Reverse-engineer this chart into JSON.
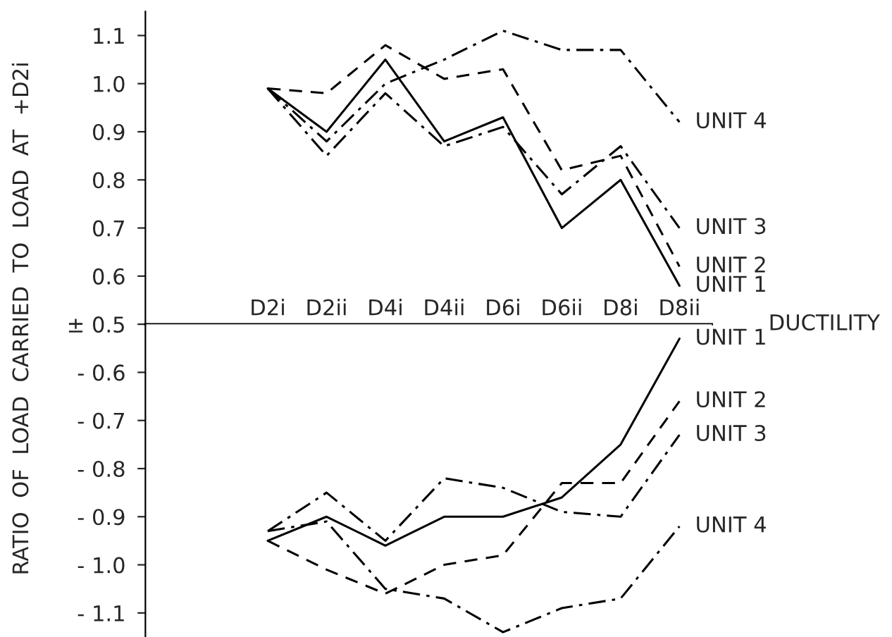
{
  "chart_data": [
    {
      "type": "line",
      "ylabel": "RATIO  OF  LOAD  CARRIED  TO  LOAD  AT  +D2i",
      "xlabel": "DUCTILITY",
      "categories": [
        "D2i",
        "D2ii",
        "D4i",
        "D4ii",
        "D6i",
        "D6ii",
        "D8i",
        "D8ii"
      ],
      "ylim": [
        0.5,
        1.15
      ],
      "yticks": [
        {
          "value": 0.5,
          "label": "± 0.5"
        },
        0.6,
        0.7,
        0.8,
        0.9,
        {
          "value": 1.0,
          "label": "1.0"
        },
        1.1
      ],
      "grid": false,
      "legend": false,
      "series": [
        {
          "name": "UNIT 1",
          "color": "#000000",
          "line_style": "solid",
          "values": [
            0.99,
            0.9,
            1.05,
            0.88,
            0.93,
            0.7,
            0.8,
            0.58
          ]
        },
        {
          "name": "UNIT 2",
          "color": "#000000",
          "line_style": "dashed",
          "values": [
            0.99,
            0.98,
            1.08,
            1.01,
            1.03,
            0.82,
            0.85,
            0.62
          ]
        },
        {
          "name": "UNIT 3",
          "color": "#000000",
          "line_style": "dashdot",
          "values": [
            0.99,
            0.85,
            0.98,
            0.87,
            0.91,
            0.77,
            0.87,
            0.7
          ]
        },
        {
          "name": "UNIT 4",
          "color": "#000000",
          "line_style": "dashdot",
          "values": [
            0.99,
            0.88,
            1.0,
            1.05,
            1.11,
            1.07,
            1.07,
            0.92
          ]
        }
      ]
    },
    {
      "type": "line",
      "categories": [
        null,
        null,
        null,
        null,
        null,
        null,
        null,
        null
      ],
      "ylim": [
        -1.15,
        -0.5
      ],
      "yticks": [
        -0.6,
        -0.7,
        -0.8,
        -0.9,
        {
          "value": -1.0,
          "label": "- 1.0"
        },
        -1.1
      ],
      "grid": false,
      "legend": false,
      "series": [
        {
          "name": "UNIT 1",
          "color": "#000000",
          "line_style": "solid",
          "values": [
            -0.95,
            -0.9,
            -0.96,
            -0.9,
            -0.9,
            -0.86,
            -0.75,
            -0.53
          ]
        },
        {
          "name": "UNIT 2",
          "color": "#000000",
          "line_style": "dashed",
          "values": [
            -0.95,
            -1.01,
            -1.06,
            -1.0,
            -0.98,
            -0.83,
            -0.83,
            -0.66
          ]
        },
        {
          "name": "UNIT 3",
          "color": "#000000",
          "line_style": "dashdot",
          "values": [
            -0.93,
            -0.85,
            -0.95,
            -0.82,
            -0.84,
            -0.89,
            -0.9,
            -0.73
          ]
        },
        {
          "name": "UNIT 4",
          "color": "#000000",
          "line_style": "dashdot",
          "values": [
            -0.93,
            -0.91,
            -1.05,
            -1.07,
            -1.14,
            -1.09,
            -1.07,
            -0.92
          ]
        }
      ]
    }
  ]
}
